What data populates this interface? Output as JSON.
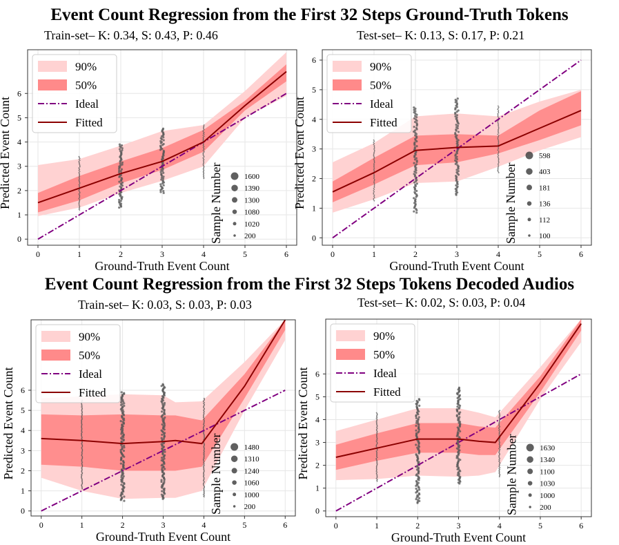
{
  "figure": {
    "title_top": "Event Count Regression from the First 32 Steps Ground-Truth Tokens",
    "title_bottom": "Event Count Regression from the First 32 Steps Tokens Decoded Audios"
  },
  "colors": {
    "band90": "#ffd2d2",
    "band50": "#ff8a8a",
    "ideal": "#800080",
    "fitted": "#8b0000",
    "points": "#555555",
    "grid": "#e6e6e6"
  },
  "legend": {
    "labels": [
      "90%",
      "50%",
      "Ideal",
      "Fitted"
    ]
  },
  "chart_data": [
    {
      "type": "line",
      "title": "Train-set– K: 0.34, S: 0.43, P: 0.46",
      "xlabel": "Ground-Truth Event Count",
      "ylabel": "Predicted Event Count",
      "xlim": [
        -0.25,
        6.25
      ],
      "ylim": [
        -0.25,
        7.8
      ],
      "xticks": [
        0,
        1,
        2,
        3,
        4,
        5,
        6
      ],
      "yticks": [
        0,
        1,
        2,
        3,
        4,
        5,
        6
      ],
      "grid": true,
      "legend": "top-left",
      "x": [
        0,
        1,
        2,
        3,
        4,
        5,
        6
      ],
      "fitted": [
        1.5,
        2.1,
        2.7,
        3.2,
        4.0,
        5.5,
        6.9
      ],
      "ideal": [
        0,
        1,
        2,
        3,
        4,
        5,
        6
      ],
      "band50": {
        "lo": [
          1.1,
          1.6,
          2.3,
          2.85,
          3.6,
          5.3,
          6.5
        ],
        "hi": [
          1.9,
          2.6,
          3.2,
          3.75,
          4.5,
          5.7,
          7.2
        ]
      },
      "band90": {
        "lo": [
          0.95,
          1.3,
          1.9,
          2.4,
          3.0,
          5.0,
          5.9
        ],
        "hi": [
          3.05,
          3.3,
          3.85,
          4.45,
          4.7,
          6.1,
          7.7
        ]
      },
      "scatter_ranges": [
        {
          "x": 1,
          "lo": 1.2,
          "hi": 3.4
        },
        {
          "x": 2,
          "lo": 1.3,
          "hi": 3.9
        },
        {
          "x": 3,
          "lo": 1.9,
          "hi": 4.55
        },
        {
          "x": 4,
          "lo": 2.5,
          "hi": 4.7
        }
      ],
      "size_legend": {
        "title": "Sample Number",
        "values": [
          "1600",
          "1390",
          "1300",
          "1080",
          "1020",
          "200"
        ]
      }
    },
    {
      "type": "line",
      "title": "Test-set– K: 0.13, S: 0.17, P: 0.21",
      "xlabel": "Ground-Truth Event Count",
      "ylabel": "Predicted Event Count",
      "xlim": [
        -0.25,
        6.25
      ],
      "ylim": [
        -0.25,
        6.35
      ],
      "xticks": [
        0,
        1,
        2,
        3,
        4,
        5,
        6
      ],
      "yticks": [
        0,
        1,
        2,
        3,
        4,
        5,
        6
      ],
      "grid": true,
      "legend": "top-left",
      "x": [
        0,
        1,
        2,
        3,
        4,
        5,
        6
      ],
      "fitted": [
        1.55,
        2.2,
        2.95,
        3.05,
        3.1,
        3.7,
        4.3
      ],
      "ideal": [
        0,
        1,
        2,
        3,
        4,
        5,
        6
      ],
      "band50": {
        "lo": [
          1.2,
          1.8,
          2.45,
          2.55,
          2.85,
          3.3,
          3.8
        ],
        "hi": [
          1.9,
          2.7,
          3.45,
          3.5,
          3.45,
          4.3,
          4.95
        ]
      },
      "band90": {
        "lo": [
          0.85,
          1.3,
          1.85,
          1.9,
          2.4,
          2.95,
          3.4
        ],
        "hi": [
          2.55,
          3.2,
          4.1,
          4.2,
          4.1,
          4.6,
          5.0
        ]
      },
      "scatter_ranges": [
        {
          "x": 1,
          "lo": 1.25,
          "hi": 3.3
        },
        {
          "x": 2,
          "lo": 0.85,
          "hi": 4.4
        },
        {
          "x": 3,
          "lo": 1.45,
          "hi": 4.7
        },
        {
          "x": 4,
          "lo": 2.2,
          "hi": 4.45
        }
      ],
      "size_legend": {
        "title": "Sample Number",
        "values": [
          "598",
          "403",
          "181",
          "136",
          "112",
          "100"
        ]
      }
    },
    {
      "type": "line",
      "title": "Train-set– K: 0.03, S: 0.03, P: 0.03",
      "xlabel": "Ground-Truth Event Count",
      "ylabel": "Predicted Event Count",
      "xlim": [
        -0.25,
        6.25
      ],
      "ylim": [
        -0.25,
        9.5
      ],
      "xticks": [
        0,
        1,
        2,
        3,
        4,
        5,
        6
      ],
      "yticks": [
        0,
        1,
        2,
        3,
        4,
        5,
        6
      ],
      "grid": true,
      "legend": "top-left",
      "x": [
        0,
        1,
        2,
        3,
        3.3,
        3.95,
        5,
        6
      ],
      "fitted": [
        3.6,
        3.5,
        3.35,
        3.45,
        3.5,
        3.35,
        6.2,
        9.5
      ],
      "ideal": [
        0,
        1,
        2,
        3,
        4,
        5,
        6
      ],
      "band50": {
        "lo": [
          2.3,
          2.2,
          2.0,
          2.0,
          2.0,
          2.2,
          5.6,
          9.0
        ],
        "hi": [
          4.8,
          4.75,
          4.8,
          4.75,
          4.75,
          4.5,
          6.8,
          9.5
        ]
      },
      "band90": {
        "lo": [
          1.65,
          1.0,
          0.6,
          0.65,
          0.65,
          1.0,
          5.0,
          8.5
        ],
        "hi": [
          5.6,
          5.7,
          5.8,
          5.75,
          5.4,
          5.45,
          7.4,
          9.5
        ]
      },
      "scatter_ranges": [
        {
          "x": 1,
          "lo": 1.1,
          "hi": 5.5
        },
        {
          "x": 2,
          "lo": 0.5,
          "hi": 5.9
        },
        {
          "x": 3,
          "lo": 0.6,
          "hi": 6.3
        },
        {
          "x": 4,
          "lo": 0.7,
          "hi": 5.6
        }
      ],
      "size_legend": {
        "title": "Sample Number",
        "values": [
          "1480",
          "1310",
          "1240",
          "1060",
          "1000",
          "200"
        ]
      }
    },
    {
      "type": "line",
      "title": "Test-set– K: 0.02, S: 0.03, P: 0.04",
      "xlabel": "Ground-Truth Event Count",
      "ylabel": "Predicted Event Count",
      "xlim": [
        -0.25,
        6.25
      ],
      "ylim": [
        -0.25,
        8.4
      ],
      "xticks": [
        0,
        1,
        2,
        3,
        4,
        5,
        6
      ],
      "yticks": [
        0,
        1,
        2,
        3,
        4,
        5,
        6
      ],
      "grid": true,
      "legend": "top-left",
      "x": [
        0,
        1,
        2,
        3,
        3.5,
        3.9,
        5,
        6
      ],
      "fitted": [
        2.35,
        2.75,
        3.15,
        3.15,
        3.05,
        3.0,
        5.6,
        8.2
      ],
      "ideal": [
        0,
        1,
        2,
        3,
        4,
        5,
        6
      ],
      "band50": {
        "lo": [
          1.8,
          2.2,
          2.55,
          2.55,
          2.45,
          2.45,
          5.2,
          7.9
        ],
        "hi": [
          2.9,
          3.4,
          3.85,
          3.85,
          3.7,
          3.65,
          5.9,
          8.4
        ]
      },
      "band90": {
        "lo": [
          1.35,
          1.4,
          1.55,
          1.5,
          1.55,
          1.7,
          4.9,
          7.4
        ],
        "hi": [
          3.5,
          4.0,
          4.5,
          4.5,
          4.3,
          4.1,
          6.3,
          8.4
        ]
      },
      "scatter_ranges": [
        {
          "x": 1,
          "lo": 1.3,
          "hi": 4.3
        },
        {
          "x": 2,
          "lo": 0.35,
          "hi": 4.9
        },
        {
          "x": 3,
          "lo": 1.2,
          "hi": 5.4
        },
        {
          "x": 4,
          "lo": 1.5,
          "hi": 4.4
        }
      ],
      "size_legend": {
        "title": "Sample Number",
        "values": [
          "1630",
          "1340",
          "1100",
          "1030",
          "1000",
          "200"
        ]
      }
    }
  ]
}
